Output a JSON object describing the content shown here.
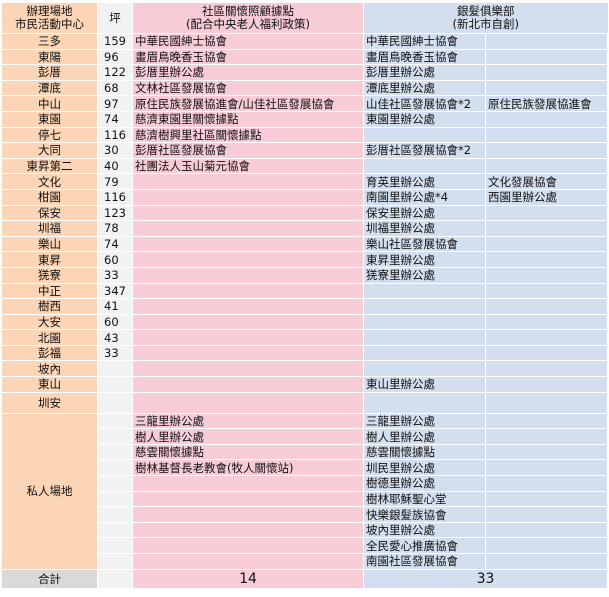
{
  "header": {
    "col0_line1": "辦理場地",
    "col0_line2": "市民活動中心",
    "col1": "坪",
    "col2_line1": "社區關懷照顧據點",
    "col2_line2": "(配合中央老人福利政策)",
    "col3_line1": "銀髮俱樂部",
    "col3_line2": "(新北市自創)"
  },
  "rows": [
    {
      "place": "三多",
      "area": "159",
      "care": "中華民國紳士協會",
      "club1": "中華民國紳士協會",
      "club2": ""
    },
    {
      "place": "東陽",
      "area": "96",
      "care": "畫眉鳥晚香玉協會",
      "club1": "畫眉鳥晚香玉協會",
      "club2": ""
    },
    {
      "place": "彭厝",
      "area": "122",
      "care": "彭厝里辦公處",
      "club1": "彭厝里辦公處",
      "club2": ""
    },
    {
      "place": "潭底",
      "area": "68",
      "care": "文林社區發展協會",
      "club1": "潭底里辦公處",
      "club2": ""
    },
    {
      "place": "中山",
      "area": "97",
      "care": "原住民族發展協進會/山佳社區發展協會",
      "club1": "山佳社區發展協會*2",
      "club2": "原住民族發展協進會"
    },
    {
      "place": "東園",
      "area": "74",
      "care": "慈濟東園里關懷據點",
      "club1": "東園里辦公處",
      "club2": ""
    },
    {
      "place": "停七",
      "area": "116",
      "care": "慈濟樹興里社區關懷據點",
      "club1": "",
      "club2": ""
    },
    {
      "place": "大同",
      "area": "30",
      "care": "彭厝社區發展協會",
      "club1": "彭厝社區發展協會*2",
      "club2": ""
    },
    {
      "place": "東昇第二",
      "area": "40",
      "care": "社團法人玉山菊元協會",
      "club1": "",
      "club2": ""
    },
    {
      "place": "文化",
      "area": "79",
      "care": "",
      "club1": "育英里辦公處",
      "club2": "文化發展協會"
    },
    {
      "place": "柑園",
      "area": "116",
      "care": "",
      "club1": "南園里辦公處*4",
      "club2": "西園里辦公處"
    },
    {
      "place": "保安",
      "area": "123",
      "care": "",
      "club1": "保安里辦公處",
      "club2": ""
    },
    {
      "place": "圳福",
      "area": "78",
      "care": "",
      "club1": "圳福里辦公處",
      "club2": ""
    },
    {
      "place": "樂山",
      "area": "74",
      "care": "",
      "club1": "樂山社區發展協會",
      "club2": ""
    },
    {
      "place": "東昇",
      "area": "60",
      "care": "",
      "club1": "東昇里辦公處",
      "club2": ""
    },
    {
      "place": "猐寮",
      "area": "33",
      "care": "",
      "club1": "猐寮里辦公處",
      "club2": ""
    },
    {
      "place": "中正",
      "area": "347",
      "care": "",
      "club1": "",
      "club2": ""
    },
    {
      "place": "樹西",
      "area": "41",
      "care": "",
      "club1": "",
      "club2": ""
    },
    {
      "place": "大安",
      "area": "60",
      "care": "",
      "club1": "",
      "club2": ""
    },
    {
      "place": "北園",
      "area": "43",
      "care": "",
      "club1": "",
      "club2": ""
    },
    {
      "place": "彭福",
      "area": "33",
      "care": "",
      "club1": "",
      "club2": ""
    },
    {
      "place": "坡內",
      "area": "",
      "care": "",
      "club1": "",
      "club2": ""
    },
    {
      "place": "東山",
      "area": "",
      "care": "",
      "club1": "東山里辦公處",
      "club2": ""
    },
    {
      "place": "圳安",
      "area": "",
      "care": "",
      "club1": "",
      "club2": ""
    }
  ],
  "private": {
    "label": "私人場地",
    "rows": [
      {
        "care": "三龍里辦公處",
        "club1": "三龍里辦公處"
      },
      {
        "care": "樹人里辦公處",
        "club1": "樹人里辦公處"
      },
      {
        "care": "慈雲關懷據點",
        "club1": "慈雲關懷據點"
      },
      {
        "care": "樹林基督長老教會(牧人關懷站)",
        "club1": "圳民里辦公處"
      },
      {
        "care": "",
        "club1": "樹德里辦公處"
      },
      {
        "care": "",
        "club1": "樹林耶穌聖心堂"
      },
      {
        "care": "",
        "club1": "快樂銀髮族協會"
      },
      {
        "care": "",
        "club1": "坡內里辦公處"
      },
      {
        "care": "",
        "club1": "全民愛心推廣協會"
      },
      {
        "care": "",
        "club1": "南園社區發展協會"
      }
    ]
  },
  "total": {
    "label": "合計",
    "care": "14",
    "club": "33"
  }
}
